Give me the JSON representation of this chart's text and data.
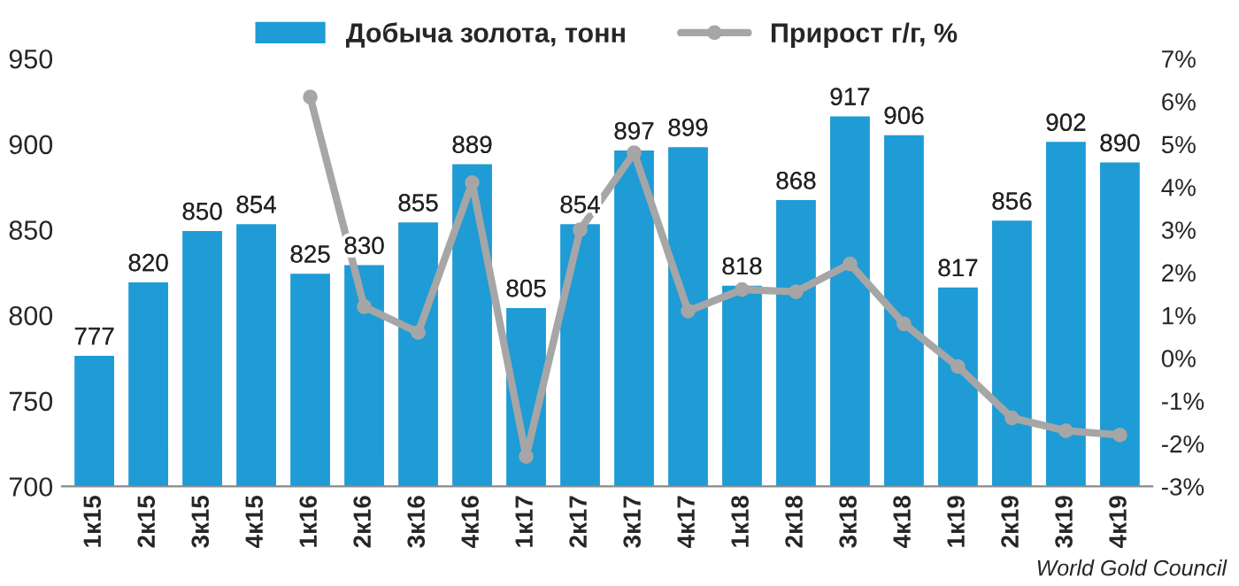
{
  "chart_data": {
    "type": "bar",
    "categories": [
      "1к15",
      "2к15",
      "3к15",
      "4к15",
      "1к16",
      "2к16",
      "3к16",
      "4к16",
      "1к17",
      "2к17",
      "3к17",
      "4к17",
      "1к18",
      "2к18",
      "3к18",
      "4к18",
      "1к19",
      "2к19",
      "3к19",
      "4к19"
    ],
    "series": [
      {
        "name": "Добыча золота, тонн",
        "color": "#1f9bd6",
        "values": [
          777,
          820,
          850,
          854,
          825,
          830,
          855,
          889,
          805,
          854,
          897,
          899,
          818,
          868,
          917,
          906,
          817,
          856,
          902,
          890
        ],
        "value_labels": [
          "777",
          "820",
          "850",
          "854",
          "825",
          "830",
          "855",
          "889",
          "805",
          "854",
          "897",
          "899",
          "818",
          "868",
          "917",
          "906",
          "817",
          "856",
          "902",
          "890"
        ]
      },
      {
        "name": "Прирост г/г, %",
        "type": "line",
        "axis": "y2",
        "color": "#a6a6a6",
        "marker": "circle",
        "values": [
          null,
          null,
          null,
          null,
          6.1,
          1.2,
          0.6,
          4.1,
          -2.3,
          3.0,
          4.8,
          1.1,
          1.6,
          1.55,
          2.2,
          0.8,
          -0.2,
          -1.4,
          -1.7,
          -1.8
        ]
      }
    ],
    "ylim": [
      700,
      950
    ],
    "yticks": [
      700,
      750,
      800,
      850,
      900,
      950
    ],
    "y2lim": [
      -3,
      7
    ],
    "y2ticks": [
      {
        "value": -3,
        "label": "-3%"
      },
      {
        "value": -2,
        "label": "-2%"
      },
      {
        "value": -1,
        "label": "-1%"
      },
      {
        "value": 0,
        "label": "0%"
      },
      {
        "value": 1,
        "label": "1%"
      },
      {
        "value": 2,
        "label": "2%"
      },
      {
        "value": 3,
        "label": "3%"
      },
      {
        "value": 4,
        "label": "4%"
      },
      {
        "value": 5,
        "label": "5%"
      },
      {
        "value": 6,
        "label": "6%"
      },
      {
        "value": 7,
        "label": "7%"
      }
    ],
    "legend": "top",
    "grid": false,
    "annotations": [
      "World Gold Council"
    ]
  }
}
